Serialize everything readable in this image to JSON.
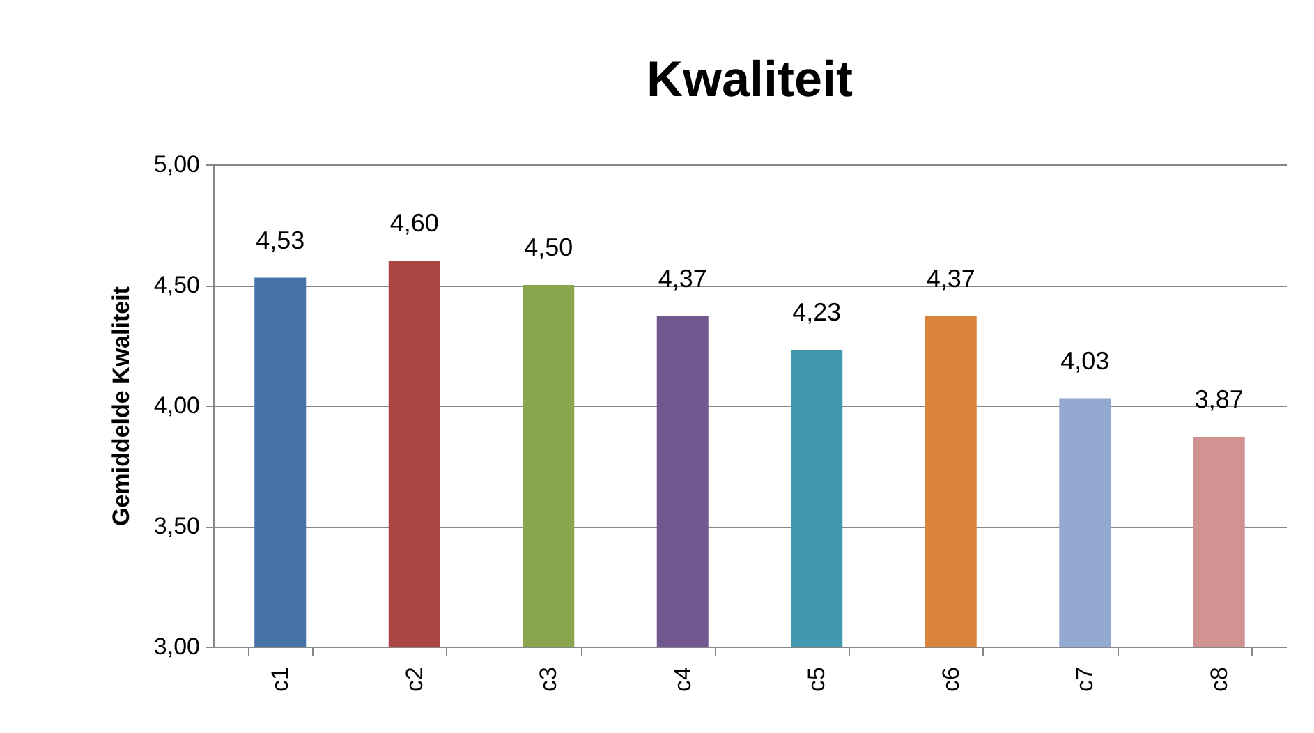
{
  "chart_data": {
    "type": "bar",
    "title": "Kwaliteit",
    "ylabel": "Gemiddelde Kwaliteit",
    "categories": [
      "c1",
      "c2",
      "c3",
      "c4",
      "c5",
      "c6",
      "c7",
      "c8"
    ],
    "values": [
      4.53,
      4.6,
      4.5,
      4.37,
      4.23,
      4.37,
      4.03,
      3.87
    ],
    "colors": [
      "#4572a7",
      "#aa4643",
      "#89a54e",
      "#71588f",
      "#4198af",
      "#db843d",
      "#93a9cf",
      "#d19392"
    ],
    "value_labels": [
      "4,53",
      "4,60",
      "4,50",
      "4,37",
      "4,23",
      "4,37",
      "4,03",
      "3,87"
    ],
    "ylim": [
      3,
      5
    ],
    "yticks": [
      {
        "value": 3,
        "label": "3,00"
      },
      {
        "value": 3.5,
        "label": "3,50"
      },
      {
        "value": 4,
        "label": "4,00"
      },
      {
        "value": 4.5,
        "label": "4,50"
      },
      {
        "value": 5,
        "label": "5,00"
      }
    ],
    "grid": "y"
  }
}
